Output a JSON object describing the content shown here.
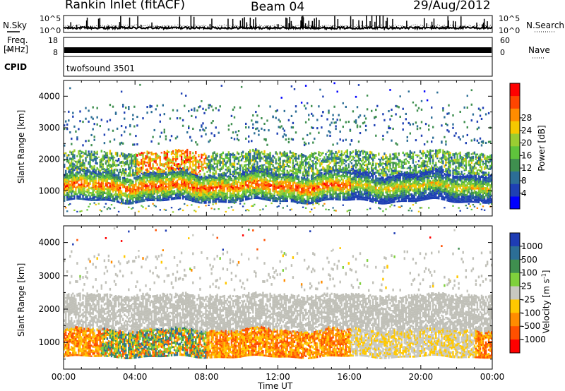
{
  "header": {
    "title": "Rankin Inlet (fitACF)",
    "beam": "Beam 04",
    "date": "29/Aug/2012"
  },
  "noise_panel": {
    "left_label": "N.Sky",
    "right_label": "N.Search",
    "y_ticks": [
      "10^5",
      "10^0"
    ],
    "right_ticks": [
      "10^5",
      "10^0"
    ]
  },
  "freq_panel": {
    "left_label_line1": "Freq.",
    "left_label_line2": "[MHz]",
    "right_label": "Nave",
    "left_ticks": [
      "18",
      "8"
    ],
    "right_ticks": [
      "60",
      "0"
    ]
  },
  "cpid_panel": {
    "label": "CPID",
    "value": "twofsound 3501"
  },
  "colors": {
    "frame": "#000000",
    "ground_scatter": "#c0c0b8"
  },
  "chart_data": [
    {
      "type": "heatmap",
      "title": "",
      "ylabel": "Slant Range [km]",
      "ylim": [
        200,
        4500
      ],
      "y_ticks": [
        1000,
        2000,
        3000,
        4000
      ],
      "x_ticks": [
        "00:00",
        "04:00",
        "08:00",
        "12:00",
        "16:00",
        "20:00",
        "00:00"
      ],
      "xlim_hours": [
        0,
        24
      ],
      "colorbar": {
        "label": "Power [dB]",
        "ticks": [
          "4",
          "8",
          "12",
          "16",
          "20",
          "24",
          "28"
        ],
        "colors": [
          "#0000ff",
          "#1e40b4",
          "#2c6e96",
          "#3f8f4f",
          "#5fc33c",
          "#9acd32",
          "#f5c800",
          "#ff8c00",
          "#ff4500",
          "#ff0000"
        ]
      },
      "features": [
        {
          "name": "main echo band",
          "start_hour": 0,
          "end_hour": 24,
          "range_start_km": 700,
          "range_end_km": 1500,
          "peak_db": 30
        },
        {
          "name": "secondary band",
          "start_hour": 0,
          "end_hour": 24,
          "range_start_km": 1500,
          "range_end_km": 2200,
          "peak_db": 18
        },
        {
          "name": "sparse far range",
          "start_hour": 0,
          "end_hour": 24,
          "range_start_km": 2500,
          "range_end_km": 3600,
          "peak_db": 10
        }
      ]
    },
    {
      "type": "heatmap",
      "title": "",
      "ylabel": "Slant Range [km]",
      "xlabel": "Time UT",
      "ylim": [
        200,
        4500
      ],
      "y_ticks": [
        1000,
        2000,
        3000,
        4000
      ],
      "x_ticks": [
        "00:00",
        "04:00",
        "08:00",
        "12:00",
        "16:00",
        "20:00",
        "00:00"
      ],
      "xlim_hours": [
        0,
        24
      ],
      "colorbar": {
        "label_main": "Velocity",
        "label_unit": "[m s",
        "label_sup": "-1",
        "label_end": "]",
        "ticks": [
          "1000",
          "500",
          "100",
          "25",
          "-25",
          "-100",
          "-500",
          "-1000"
        ],
        "colors": [
          "#1e3cb4",
          "#2c6e96",
          "#3f8f4f",
          "#7fd03c",
          "#c8c8c0",
          "#ffc800",
          "#ff8c00",
          "#ff5000",
          "#ff0000"
        ]
      },
      "features": [
        {
          "name": "ground scatter",
          "start_hour": 0,
          "end_hour": 24,
          "range_start_km": 1300,
          "range_end_km": 2400,
          "velocity": 0
        },
        {
          "name": "receding flow",
          "start_hour": 0,
          "end_hour": 16,
          "range_start_km": 600,
          "range_end_km": 1300,
          "velocity": -300
        },
        {
          "name": "approaching flow",
          "start_hour": 2,
          "end_hour": 8,
          "range_start_km": 800,
          "range_end_km": 1200,
          "velocity": 200
        }
      ]
    }
  ]
}
